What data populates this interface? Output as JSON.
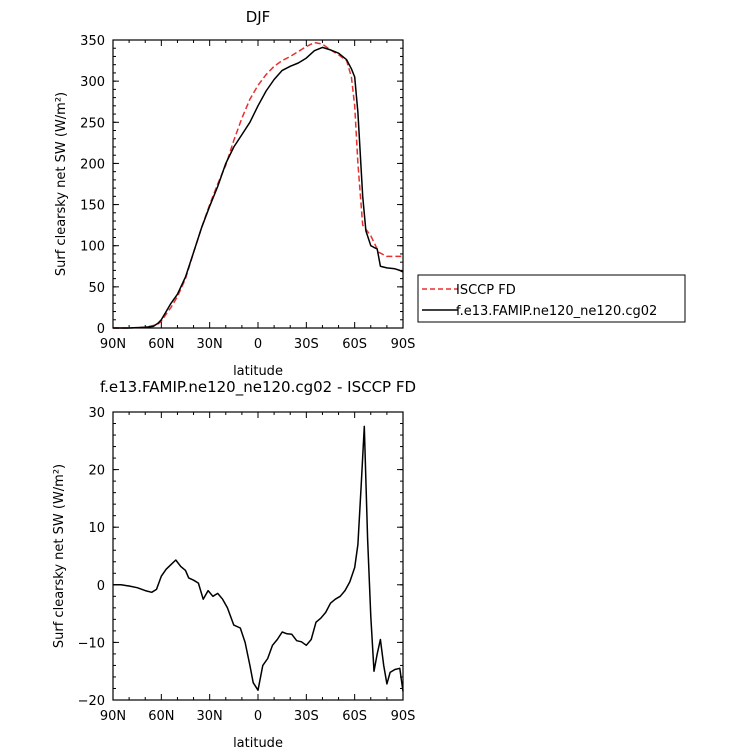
{
  "chart_data": [
    {
      "type": "line",
      "title": "DJF",
      "xlabel": "latitude",
      "ylabel": "Surf clearsky net SW (W/m²)",
      "xlim": [
        90,
        -90
      ],
      "ylim": [
        0,
        350
      ],
      "xticks": [
        90,
        60,
        30,
        0,
        -30,
        -60,
        -90
      ],
      "xtick_labels": [
        "90N",
        "60N",
        "30N",
        "0",
        "30S",
        "60S",
        "90S"
      ],
      "yticks": [
        0,
        50,
        100,
        150,
        200,
        250,
        300,
        350
      ],
      "ytick_labels": [
        "0",
        "50",
        "100",
        "150",
        "200",
        "250",
        "300",
        "350"
      ],
      "legend_position": "right-middle",
      "series": [
        {
          "name": "ISCCP FD",
          "color": "#e8302f",
          "dash": "dashed",
          "x": [
            90,
            80,
            70,
            65,
            62,
            60,
            57,
            54,
            50,
            45,
            40,
            35,
            30,
            25,
            20,
            15,
            10,
            5,
            0,
            -5,
            -10,
            -15,
            -20,
            -25,
            -30,
            -35,
            -40,
            -45,
            -50,
            -55,
            -58,
            -60,
            -62,
            -65,
            -70,
            -75,
            -80,
            -85,
            -90
          ],
          "y": [
            0,
            0,
            1,
            3,
            5,
            8,
            17,
            25,
            38,
            60,
            92,
            122,
            150,
            175,
            198,
            228,
            255,
            278,
            295,
            308,
            318,
            325,
            330,
            336,
            342,
            347,
            345,
            338,
            332,
            325,
            305,
            270,
            200,
            125,
            112,
            92,
            87,
            87,
            87
          ]
        },
        {
          "name": "f.e13.FAMIP.ne120_ne120.cg02",
          "color": "#000000",
          "dash": "solid",
          "x": [
            90,
            80,
            70,
            65,
            62,
            60,
            57,
            54,
            50,
            45,
            40,
            35,
            30,
            25,
            20,
            15,
            10,
            5,
            0,
            -5,
            -10,
            -15,
            -20,
            -25,
            -30,
            -35,
            -40,
            -45,
            -50,
            -55,
            -58,
            -60,
            -62,
            -65,
            -67,
            -70,
            -72,
            -74,
            -76,
            -80,
            -85,
            -88,
            -90
          ],
          "y": [
            0,
            0,
            1,
            2,
            6,
            10,
            20,
            30,
            41,
            62,
            92,
            122,
            148,
            172,
            200,
            220,
            235,
            250,
            270,
            288,
            302,
            313,
            318,
            322,
            328,
            337,
            341,
            338,
            334,
            326,
            315,
            305,
            262,
            160,
            118,
            100,
            98,
            96,
            75,
            73,
            72,
            70,
            68
          ]
        }
      ]
    },
    {
      "type": "line",
      "title": "f.e13.FAMIP.ne120_ne120.cg02 - ISCCP FD",
      "xlabel": "latitude",
      "ylabel": "Surf clearsky net SW (W/m²)",
      "xlim": [
        90,
        -90
      ],
      "ylim": [
        -20,
        30
      ],
      "xticks": [
        90,
        60,
        30,
        0,
        -30,
        -60,
        -90
      ],
      "xtick_labels": [
        "90N",
        "60N",
        "30N",
        "0",
        "30S",
        "60S",
        "90S"
      ],
      "yticks": [
        -20,
        -10,
        0,
        10,
        20,
        30
      ],
      "ytick_labels": [
        "−20",
        "−10",
        "0",
        "10",
        "20",
        "30"
      ],
      "series": [
        {
          "color": "#000000",
          "dash": "solid",
          "x": [
            90,
            85,
            80,
            75,
            70,
            66,
            63,
            60,
            57,
            54,
            51,
            48,
            45,
            43,
            40,
            37,
            34,
            31,
            28,
            25,
            22,
            19,
            15,
            11,
            8,
            5,
            3,
            0,
            -3,
            -6,
            -9,
            -12,
            -15,
            -18,
            -21,
            -24,
            -27,
            -30,
            -33,
            -36,
            -39,
            -42,
            -45,
            -48,
            -51,
            -54,
            -57,
            -60,
            -62,
            -64,
            -66,
            -68,
            -70,
            -72,
            -74,
            -76,
            -78,
            -80,
            -82,
            -85,
            -88,
            -90
          ],
          "y": [
            0,
            0,
            -0.2,
            -0.5,
            -1,
            -1.3,
            -0.8,
            1.5,
            2.7,
            3.5,
            4.3,
            3.2,
            2.5,
            1.2,
            0.8,
            0.3,
            -2.5,
            -1,
            -2,
            -1.5,
            -2.5,
            -4,
            -7,
            -7.5,
            -10,
            -14,
            -17,
            -18.3,
            -14,
            -12.8,
            -10.5,
            -9.5,
            -8.2,
            -8.5,
            -8.6,
            -9.7,
            -9.9,
            -10.5,
            -9.5,
            -6.5,
            -5.8,
            -4.8,
            -3.2,
            -2.5,
            -2,
            -1,
            0.5,
            3,
            7,
            17,
            27.5,
            8,
            -5.5,
            -15,
            -12,
            -9.5,
            -14,
            -17.2,
            -15.2,
            -14.7,
            -14.5,
            -18.5
          ]
        }
      ]
    }
  ]
}
